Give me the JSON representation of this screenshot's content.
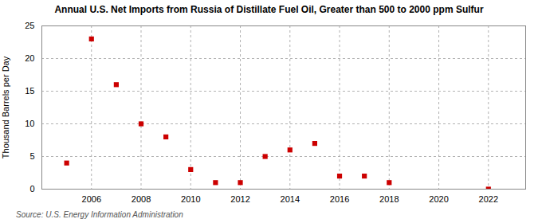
{
  "chart_data": {
    "type": "scatter",
    "title": "Annual U.S. Net Imports from Russia of Distillate Fuel Oil, Greater than 500 to 2000 ppm Sulfur",
    "ylabel": "Thousand Barrels per Day",
    "source": "Source: U.S. Energy Information Administration",
    "x": [
      2005,
      2006,
      2007,
      2008,
      2009,
      2010,
      2011,
      2012,
      2013,
      2014,
      2015,
      2016,
      2017,
      2018,
      2022
    ],
    "values": [
      4.0,
      23.0,
      16.0,
      10.0,
      8.0,
      3.0,
      1.0,
      1.0,
      5.0,
      6.0,
      7.0,
      2.0,
      2.0,
      1.0,
      0.0
    ],
    "color": "#cc0000",
    "marker": "square",
    "xlim": [
      2004.0,
      2023.5
    ],
    "ylim": [
      0,
      25
    ],
    "xticks": [
      2006,
      2008,
      2010,
      2012,
      2014,
      2016,
      2018,
      2020,
      2022
    ],
    "yticks": [
      0,
      5,
      10,
      15,
      20,
      25
    ],
    "grid": true
  }
}
